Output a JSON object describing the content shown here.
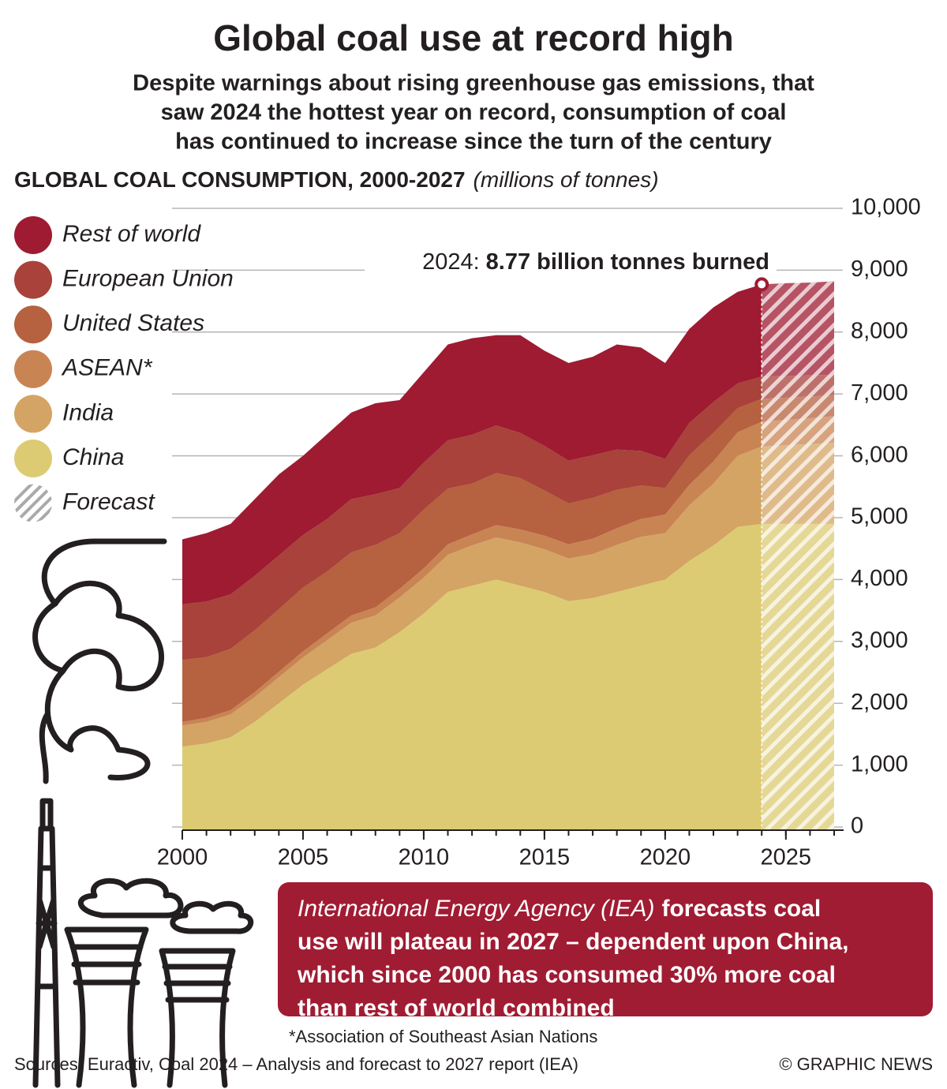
{
  "chart_data": {
    "type": "stacked_area",
    "title": "Global coal use at record high",
    "subtitle": [
      "Despite warnings about rising greenhouse gas emissions, that",
      "saw 2024 the hottest year on record, consumption of coal",
      "has continued to increase since the turn of the century"
    ],
    "heading": "GLOBAL COAL CONSUMPTION, 2000-2027",
    "unit": "(millions of tonnes)",
    "x": [
      2000,
      2001,
      2002,
      2003,
      2004,
      2005,
      2006,
      2007,
      2008,
      2009,
      2010,
      2011,
      2012,
      2013,
      2014,
      2015,
      2016,
      2017,
      2018,
      2019,
      2020,
      2021,
      2022,
      2023,
      2024,
      2025,
      2026,
      2027
    ],
    "series": [
      {
        "name": "China",
        "color": "#dccb73",
        "values": [
          1300,
          1350,
          1450,
          1700,
          2000,
          2300,
          2550,
          2800,
          2900,
          3150,
          3450,
          3800,
          3900,
          4000,
          3900,
          3800,
          3650,
          3700,
          3800,
          3900,
          4000,
          4300,
          4550,
          4850,
          4900,
          4900,
          4900,
          4900
        ]
      },
      {
        "name": "India",
        "color": "#d4a464",
        "values": [
          340,
          350,
          370,
          400,
          420,
          440,
          470,
          500,
          520,
          560,
          580,
          600,
          650,
          680,
          700,
          690,
          690,
          710,
          760,
          790,
          750,
          900,
          1000,
          1150,
          1250,
          1270,
          1290,
          1310
        ]
      },
      {
        "name": "ASEAN*",
        "color": "#c98454",
        "values": [
          60,
          65,
          70,
          80,
          90,
          100,
          110,
          120,
          130,
          140,
          150,
          170,
          180,
          200,
          210,
          220,
          230,
          250,
          270,
          290,
          300,
          330,
          360,
          380,
          400,
          410,
          420,
          430
        ]
      },
      {
        "name": "United States",
        "color": "#b6613f",
        "values": [
          1000,
          980,
          990,
          1000,
          1010,
          1030,
          1000,
          1020,
          1010,
          900,
          950,
          900,
          820,
          840,
          830,
          730,
          660,
          660,
          620,
          540,
          430,
          480,
          460,
          390,
          370,
          360,
          350,
          340
        ]
      },
      {
        "name": "European Union",
        "color": "#a8423a",
        "values": [
          900,
          900,
          880,
          880,
          870,
          850,
          850,
          860,
          820,
          730,
          760,
          780,
          790,
          770,
          730,
          720,
          690,
          690,
          650,
          560,
          470,
          520,
          500,
          400,
          360,
          350,
          340,
          330
        ]
      },
      {
        "name": "Rest of world",
        "color": "#9e1b32",
        "values": [
          1050,
          1105,
          1140,
          1240,
          1310,
          1280,
          1370,
          1400,
          1470,
          1420,
          1460,
          1550,
          1560,
          1460,
          1580,
          1540,
          1580,
          1590,
          1700,
          1670,
          1550,
          1520,
          1530,
          1480,
          1490,
          1500,
          1500,
          1510
        ]
      }
    ],
    "forecast_from": 2024,
    "forecast_label": "Forecast",
    "annotation": {
      "year": "2024:",
      "text": "8.77 billion tonnes burned"
    },
    "xlim": [
      2000,
      2027
    ],
    "xticks": [
      2000,
      2005,
      2010,
      2015,
      2020,
      2025
    ],
    "ylim": [
      0,
      10000
    ],
    "yticks": [
      0,
      {
        "value": 1000,
        "label": "1,000"
      },
      {
        "value": 2000,
        "label": "2,000"
      },
      {
        "value": 3000,
        "label": "3,000"
      },
      {
        "value": 4000,
        "label": "4,000"
      },
      {
        "value": 5000,
        "label": "5,000"
      },
      {
        "value": 6000,
        "label": "6,000"
      },
      {
        "value": 7000,
        "label": "7,000"
      },
      {
        "value": 8000,
        "label": "8,000"
      },
      {
        "value": 9000,
        "label": "9,000"
      },
      {
        "value": 10000,
        "label": "10,000"
      }
    ],
    "grid": true,
    "info_box": {
      "source": "International Energy Agency (IEA)",
      "lines": [
        "forecasts coal",
        "use will plateau in 2027 – dependent upon China,",
        "which since 2000 has consumed 30% more coal",
        "than rest of world combined"
      ]
    },
    "footnote": "*Association of Southeast Asian Nations",
    "sources": "Sources: Euractiv, Coal 2024 – Analysis and forecast to 2027 report (IEA)",
    "credit": "© GRAPHIC NEWS"
  }
}
